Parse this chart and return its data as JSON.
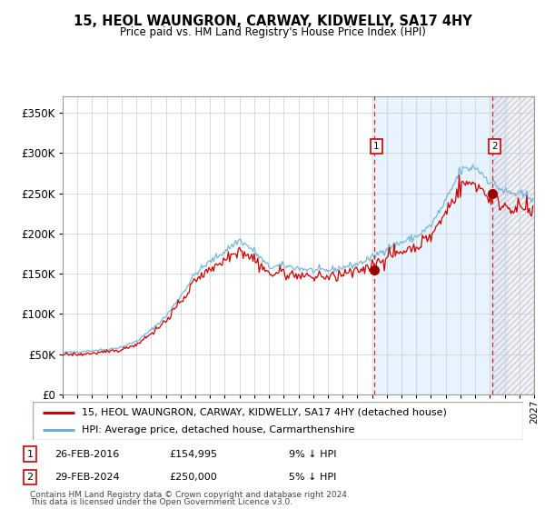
{
  "title": "15, HEOL WAUNGRON, CARWAY, KIDWELLY, SA17 4HY",
  "subtitle": "Price paid vs. HM Land Registry's House Price Index (HPI)",
  "legend_line1": "15, HEOL WAUNGRON, CARWAY, KIDWELLY, SA17 4HY (detached house)",
  "legend_line2": "HPI: Average price, detached house, Carmarthenshire",
  "annotation1_label": "1",
  "annotation1_date": "26-FEB-2016",
  "annotation1_price": "£154,995",
  "annotation1_pct": "9% ↓ HPI",
  "annotation2_label": "2",
  "annotation2_date": "29-FEB-2024",
  "annotation2_price": "£250,000",
  "annotation2_pct": "5% ↓ HPI",
  "footnote1": "Contains HM Land Registry data © Crown copyright and database right 2024.",
  "footnote2": "This data is licensed under the Open Government Licence v3.0.",
  "sale1_year": 2016.15,
  "sale1_value": 154995,
  "sale2_year": 2024.16,
  "sale2_value": 250000,
  "hpi_color": "#6baed6",
  "price_color": "#cc0000",
  "dot_color": "#990000",
  "shade_color": "#ddeeff",
  "grid_color": "#cccccc",
  "ylim": [
    0,
    370000
  ],
  "yticks": [
    0,
    50000,
    100000,
    150000,
    200000,
    250000,
    300000,
    350000
  ],
  "xstart": 1995,
  "xend": 2027
}
